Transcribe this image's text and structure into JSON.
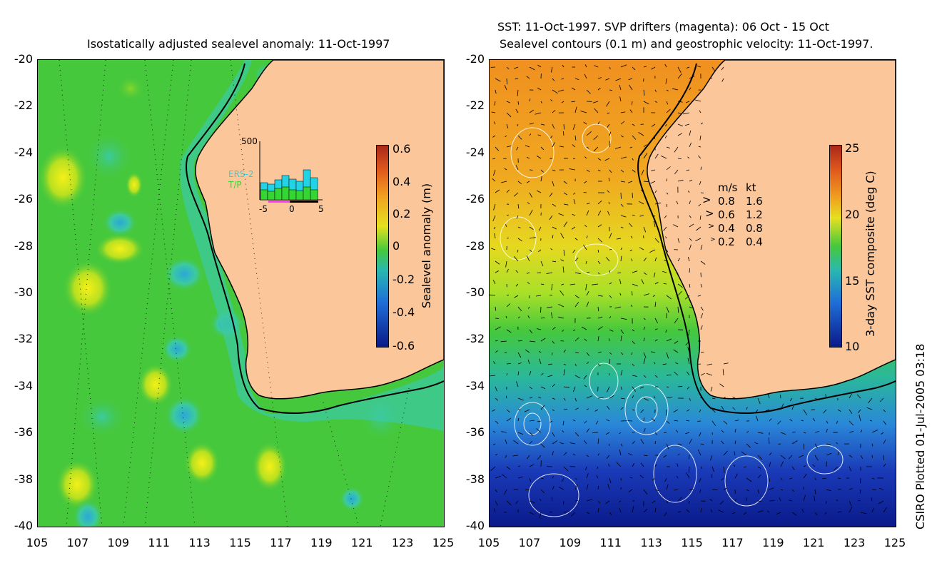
{
  "left_panel": {
    "title": "Isostatically adjusted sealevel anomaly: 11-Oct-1997",
    "colorbar": {
      "label": "Sealevel anomaly (m)",
      "ticks": [
        "0.6",
        "0.4",
        "0.2",
        "0",
        "-0.2",
        "-0.4",
        "-0.6"
      ],
      "range": [
        -0.6,
        0.6
      ]
    },
    "inset": {
      "ymax_label": "500",
      "series_labels": [
        "ERS-2",
        "T/P"
      ],
      "series_colors": [
        "#22d3e6",
        "#33d633"
      ],
      "x_ticks": [
        "-5",
        "0",
        "5"
      ]
    }
  },
  "right_panel": {
    "title_line1": "SST: 11-Oct-1997. SVP drifters (magenta): 06 Oct - 15 Oct",
    "title_line2": "Sealevel contours (0.1 m) and geostrophic velocity: 11-Oct-1997.",
    "colorbar": {
      "label": "3-day SST composite (deg C)",
      "ticks": [
        "25",
        "20",
        "15",
        "10"
      ],
      "range": [
        10,
        25
      ]
    },
    "velocity_legend": {
      "header_ms": "m/s",
      "header_kt": "kt",
      "rows": [
        {
          "ms": "0.8",
          "kt": "1.6"
        },
        {
          "ms": "0.6",
          "kt": "1.2"
        },
        {
          "ms": "0.4",
          "kt": "0.8"
        },
        {
          "ms": "0.2",
          "kt": "0.4"
        }
      ]
    }
  },
  "axes": {
    "lat_ticks": [
      "-20",
      "-22",
      "-24",
      "-26",
      "-28",
      "-30",
      "-32",
      "-34",
      "-36",
      "-38",
      "-40"
    ],
    "lon_ticks": [
      "105",
      "107",
      "109",
      "111",
      "113",
      "115",
      "117",
      "119",
      "121",
      "123",
      "125"
    ],
    "lon_range": [
      105,
      125
    ],
    "lat_range": [
      -40,
      -20
    ]
  },
  "credit": "CSIRO Plotted 01-Jul-2005 03:18",
  "colors": {
    "land": "#fbc79a",
    "ocean_anomaly_base": "#46c83c",
    "coastline": "#000000"
  }
}
